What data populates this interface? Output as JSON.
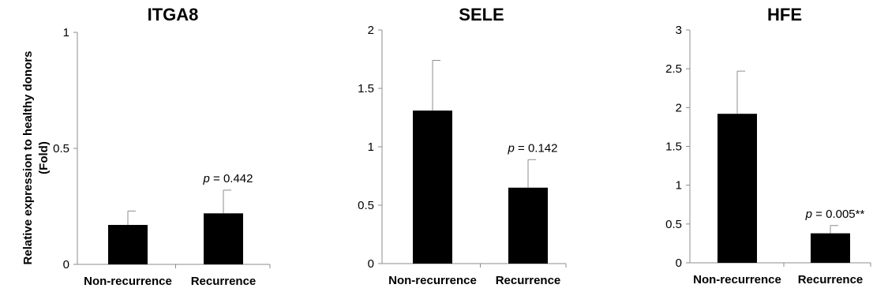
{
  "figure": {
    "ylabel_line1": "Relative expression to healthy donors",
    "ylabel_line2": "(Fold)"
  },
  "chart_data": [
    {
      "type": "bar",
      "title": "ITGA8",
      "categories": [
        "Non-recurrence",
        "Recurrence"
      ],
      "values": [
        0.17,
        0.22
      ],
      "errors": [
        0.06,
        0.1
      ],
      "ylim": [
        0,
        1
      ],
      "yticks": [
        "0",
        "0.5",
        "1"
      ],
      "ytick_values": [
        0,
        0.5,
        1
      ],
      "annotation": {
        "p_letter": "p",
        "text": " = 0.442",
        "category": "Recurrence"
      }
    },
    {
      "type": "bar",
      "title": "SELE",
      "categories": [
        "Non-recurrence",
        "Recurrence"
      ],
      "values": [
        1.31,
        0.65
      ],
      "errors": [
        0.43,
        0.24
      ],
      "ylim": [
        0,
        2
      ],
      "yticks": [
        "0",
        "0.5",
        "1",
        "1.5",
        "2"
      ],
      "ytick_values": [
        0,
        0.5,
        1,
        1.5,
        2
      ],
      "annotation": {
        "p_letter": "p",
        "text": " = 0.142",
        "category": "Recurrence"
      }
    },
    {
      "type": "bar",
      "title": "HFE",
      "categories": [
        "Non-recurrence",
        "Recurrence"
      ],
      "values": [
        1.92,
        0.38
      ],
      "errors": [
        0.55,
        0.1
      ],
      "ylim": [
        0,
        3
      ],
      "yticks": [
        "0",
        "0.5",
        "1",
        "1.5",
        "2",
        "2.5",
        "3"
      ],
      "ytick_values": [
        0,
        0.5,
        1,
        1.5,
        2,
        2.5,
        3
      ],
      "annotation": {
        "p_letter": "p",
        "text": " = 0.005**",
        "category": "Recurrence"
      }
    }
  ]
}
